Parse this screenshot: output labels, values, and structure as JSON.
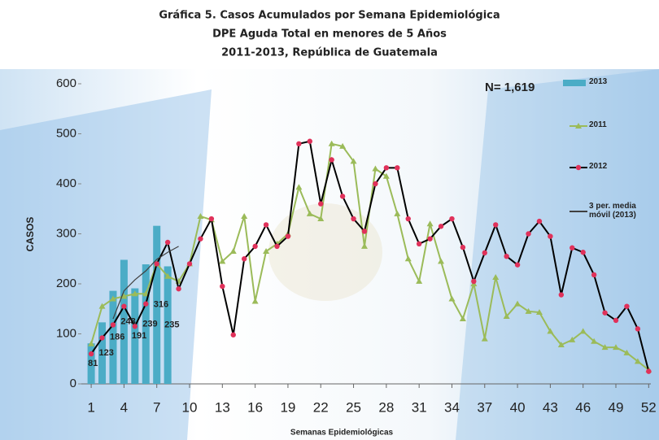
{
  "chart_data": {
    "type": "line",
    "title": "Gráfica 5.  Casos Acumulados por Semana Epidemiológica",
    "subtitle": [
      "DPE Aguda Total en menores de 5 Años",
      "2011-2013, República de Guatemala"
    ],
    "annotation": "N= 1,619",
    "x_label": "Semanas Epidemiológicas",
    "y_label": "CASOS",
    "x": [
      1,
      2,
      3,
      4,
      5,
      6,
      7,
      8,
      9,
      10,
      11,
      12,
      13,
      14,
      15,
      16,
      17,
      18,
      19,
      20,
      21,
      22,
      23,
      24,
      25,
      26,
      27,
      28,
      29,
      30,
      31,
      32,
      33,
      34,
      35,
      36,
      37,
      38,
      39,
      40,
      41,
      42,
      43,
      44,
      45,
      46,
      47,
      48,
      49,
      50,
      51,
      52
    ],
    "xlim": [
      0.1,
      52.2
    ],
    "xticks": [
      1,
      4,
      7,
      10,
      13,
      16,
      19,
      22,
      25,
      28,
      31,
      34,
      37,
      40,
      43,
      46,
      49,
      52
    ],
    "ylim": [
      0,
      600
    ],
    "yticks": [
      0,
      100,
      200,
      300,
      400,
      500,
      600
    ],
    "series": [
      {
        "name": "2013",
        "kind": "bar",
        "color": "#4bacc6",
        "data_labels": true,
        "values": [
          81,
          123,
          186,
          248,
          191,
          239,
          316,
          235,
          null,
          null,
          null,
          null,
          null,
          null,
          null,
          null,
          null,
          null,
          null,
          null,
          null,
          null,
          null,
          null,
          null,
          null,
          null,
          null,
          null,
          null,
          null,
          null,
          null,
          null,
          null,
          null,
          null,
          null,
          null,
          null,
          null,
          null,
          null,
          null,
          null,
          null,
          null,
          null,
          null,
          null,
          null,
          null
        ]
      },
      {
        "name": "2011",
        "kind": "line",
        "color": "#9bbb59",
        "marker": "triangle",
        "marker_color": "#9bbb59",
        "values": [
          80,
          155,
          170,
          175,
          180,
          180,
          240,
          215,
          205,
          240,
          335,
          328,
          245,
          265,
          335,
          165,
          265,
          280,
          300,
          393,
          340,
          330,
          480,
          475,
          445,
          275,
          430,
          415,
          340,
          250,
          205,
          320,
          245,
          170,
          130,
          200,
          90,
          213,
          135,
          160,
          145,
          143,
          105,
          78,
          88,
          105,
          85,
          73,
          73,
          62,
          45,
          28
        ]
      },
      {
        "name": "2012",
        "kind": "line",
        "color": "#000000",
        "marker": "circle",
        "marker_color": "#e0315a",
        "values": [
          60,
          92,
          118,
          155,
          115,
          160,
          240,
          283,
          190,
          240,
          290,
          330,
          195,
          98,
          250,
          275,
          318,
          275,
          295,
          480,
          485,
          360,
          448,
          375,
          330,
          305,
          400,
          432,
          432,
          330,
          280,
          290,
          315,
          330,
          273,
          205,
          262,
          318,
          255,
          238,
          300,
          325,
          295,
          178,
          272,
          263,
          218,
          142,
          127,
          155,
          110,
          25
        ]
      },
      {
        "name": "3 per. media móvil (2013)",
        "kind": "line",
        "color": "#404040",
        "marker": "none",
        "values": [
          null,
          null,
          130,
          186,
          208,
          226,
          249,
          263,
          275,
          null,
          null,
          null,
          null,
          null,
          null,
          null,
          null,
          null,
          null,
          null,
          null,
          null,
          null,
          null,
          null,
          null,
          null,
          null,
          null,
          null,
          null,
          null,
          null,
          null,
          null,
          null,
          null,
          null,
          null,
          null,
          null,
          null,
          null,
          null,
          null,
          null,
          null,
          null,
          null,
          null,
          null,
          null
        ]
      }
    ]
  }
}
